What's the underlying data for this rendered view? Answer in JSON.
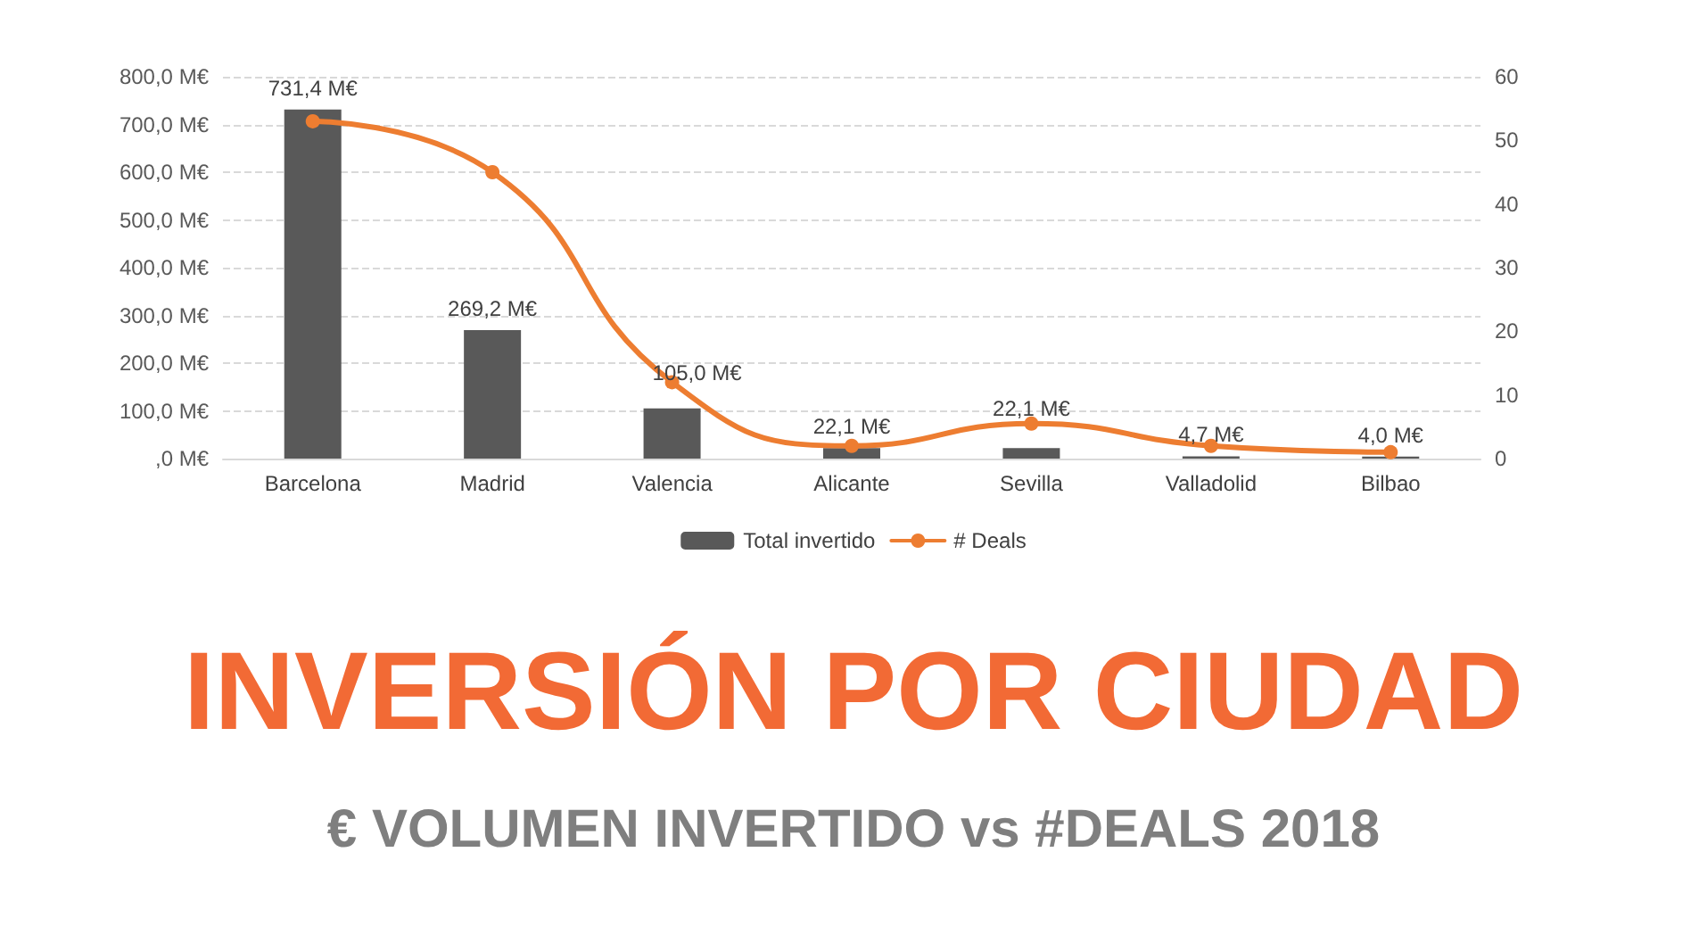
{
  "chart_data": {
    "type": "bar",
    "title": "INVERSIÓN POR CIUDAD",
    "subtitle": "€ VOLUMEN INVERTIDO vs #DEALS 2018",
    "categories": [
      "Barcelona",
      "Madrid",
      "Valencia",
      "Alicante",
      "Sevilla",
      "Valladolid",
      "Bilbao"
    ],
    "series": [
      {
        "name": "Total invertido",
        "color": "#595959",
        "values": [
          731.4,
          269.2,
          105.0,
          22.1,
          22.1,
          4.7,
          4.0
        ],
        "value_labels": [
          "731,4 M€",
          "269,2 M€",
          "105,0 M€",
          "22,1 M€",
          "22,1 M€",
          "4,7 M€",
          "4,0 M€"
        ]
      },
      {
        "name": "# Deals",
        "type": "line",
        "axis": "y2",
        "color": "#ed7d31",
        "marker": "circle",
        "values": [
          53,
          45,
          12,
          2,
          5.5,
          2,
          1
        ]
      }
    ],
    "ylim": [
      0,
      800
    ],
    "yticks": [
      {
        "value": 0,
        "label": ",0 M€"
      },
      {
        "value": 100,
        "label": "100,0 M€"
      },
      {
        "value": 200,
        "label": "200,0 M€"
      },
      {
        "value": 300,
        "label": "300,0 M€"
      },
      {
        "value": 400,
        "label": "400,0 M€"
      },
      {
        "value": 500,
        "label": "500,0 M€"
      },
      {
        "value": 600,
        "label": "600,0 M€"
      },
      {
        "value": 700,
        "label": "700,0 M€"
      },
      {
        "value": 800,
        "label": "800,0 M€"
      }
    ],
    "y2lim": [
      0,
      60
    ],
    "y2ticks": [
      0,
      10,
      20,
      30,
      40,
      50,
      60
    ],
    "grid": "y",
    "legend": "bottom"
  }
}
